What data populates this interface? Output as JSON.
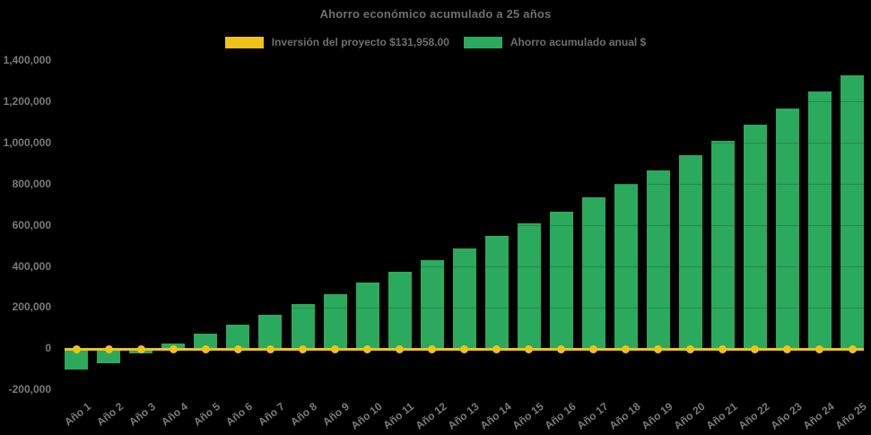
{
  "chart_data": {
    "type": "bar",
    "title": "Ahorro económico acumulado a 25 años",
    "categories": [
      "Año 1",
      "Año 2",
      "Año 3",
      "Año 4",
      "Año 5",
      "Año 6",
      "Año 7",
      "Año 8",
      "Año 9",
      "Año 10",
      "Año 11",
      "Año 12",
      "Año 13",
      "Año 14",
      "Año 15",
      "Año 16",
      "Año 17",
      "Año 18",
      "Año 19",
      "Año 20",
      "Año 21",
      "Año 22",
      "Año 23",
      "Año 24",
      "Año 25"
    ],
    "series": [
      {
        "name": "Inversión del proyecto $131,958.00",
        "type": "line",
        "color": "#EFC319",
        "marker": "circle",
        "values": [
          0,
          0,
          0,
          0,
          0,
          0,
          0,
          0,
          0,
          0,
          0,
          0,
          0,
          0,
          0,
          0,
          0,
          0,
          0,
          0,
          0,
          0,
          0,
          0,
          0
        ]
      },
      {
        "name": "Ahorro acumulado anual $",
        "type": "bar",
        "color": "#2BA95D",
        "values": [
          -98000,
          -68000,
          -20000,
          29000,
          77000,
          120000,
          168000,
          218000,
          268000,
          324000,
          375000,
          433000,
          488000,
          549000,
          612000,
          668000,
          740000,
          802000,
          870000,
          942000,
          1012000,
          1092000,
          1168000,
          1252000,
          1330000
        ]
      }
    ],
    "ylim": [
      -200000,
      1400000
    ],
    "ytick_step": 200000,
    "ytick_labels": [
      "1,400,000",
      "1,200,000",
      "1,000,000",
      "800,000",
      "600,000",
      "400,000",
      "200,000",
      "0",
      "-200,000"
    ],
    "grid": false,
    "legend_position": "top",
    "background_color": "#000000",
    "text_color": "#7a7a7a"
  }
}
